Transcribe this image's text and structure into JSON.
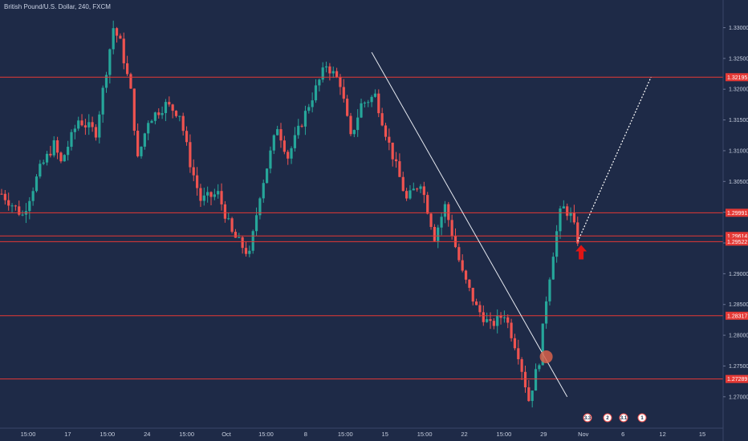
{
  "symbol_title": "British Pound/U.S. Dollar, 240, FXCM",
  "colors": {
    "background": "#1e2a47",
    "up": "#26a69a",
    "down": "#ef5350",
    "level_line": "#e53935",
    "trendline": "#e6e9f0",
    "projection": "#ffffff",
    "arrow": "#e01515",
    "highlight_circle": "#d8624b",
    "axis_text": "#c7cfdf"
  },
  "chart_data": {
    "type": "candlestick",
    "y_range": [
      1.2675,
      1.3345
    ],
    "y_ticks": [
      "1.33000",
      "1.32500",
      "1.32000",
      "1.31500",
      "1.31000",
      "1.30500",
      "1.30000",
      "1.29500",
      "1.29000",
      "1.28500",
      "1.28000",
      "1.27500",
      "1.27000"
    ],
    "x_ticks": [
      "15:00",
      "17",
      "15:00",
      "24",
      "15:00",
      "Oct",
      "15:00",
      "8",
      "15:00",
      "15",
      "15:00",
      "22",
      "15:00",
      "29",
      "Nov",
      "6",
      "12",
      "15"
    ],
    "horizontal_levels": [
      {
        "label": "1.32195",
        "value": 1.32195
      },
      {
        "label": "1.29991",
        "value": 1.29991
      },
      {
        "label": "1.29614",
        "value": 1.29614
      },
      {
        "label": "1.29522",
        "value": 1.29522
      },
      {
        "label": "1.28317",
        "value": 1.28317
      },
      {
        "label": "1.27289",
        "value": 1.27289
      }
    ],
    "path_anchors": [
      [
        0,
        1.303
      ],
      [
        0.03,
        1.2995
      ],
      [
        0.055,
        1.307
      ],
      [
        0.075,
        1.311
      ],
      [
        0.085,
        1.308
      ],
      [
        0.11,
        1.315
      ],
      [
        0.135,
        1.313
      ],
      [
        0.16,
        1.33
      ],
      [
        0.17,
        1.3275
      ],
      [
        0.185,
        1.3195
      ],
      [
        0.195,
        1.3085
      ],
      [
        0.21,
        1.315
      ],
      [
        0.235,
        1.3175
      ],
      [
        0.255,
        1.316
      ],
      [
        0.27,
        1.308
      ],
      [
        0.285,
        1.302
      ],
      [
        0.31,
        1.303
      ],
      [
        0.33,
        1.2965
      ],
      [
        0.355,
        1.293
      ],
      [
        0.37,
        1.303
      ],
      [
        0.395,
        1.314
      ],
      [
        0.41,
        1.309
      ],
      [
        0.44,
        1.3175
      ],
      [
        0.465,
        1.324
      ],
      [
        0.485,
        1.321
      ],
      [
        0.5,
        1.312
      ],
      [
        0.515,
        1.3175
      ],
      [
        0.535,
        1.319
      ],
      [
        0.555,
        1.311
      ],
      [
        0.58,
        1.302
      ],
      [
        0.6,
        1.305
      ],
      [
        0.62,
        1.296
      ],
      [
        0.635,
        1.301
      ],
      [
        0.66,
        1.29
      ],
      [
        0.68,
        1.2845
      ],
      [
        0.7,
        1.2815
      ],
      [
        0.72,
        1.2835
      ],
      [
        0.74,
        1.277
      ],
      [
        0.755,
        1.2695
      ],
      [
        0.77,
        1.276
      ],
      [
        0.78,
        1.286
      ],
      [
        0.792,
        1.295
      ],
      [
        0.802,
        1.301
      ],
      [
        0.815,
        1.2995
      ],
      [
        0.825,
        1.2955
      ]
    ],
    "candle_count": 200,
    "trendline": {
      "start": {
        "index": 106,
        "price": 1.326
      },
      "end": {
        "index": 162,
        "price": 1.27
      }
    },
    "projection": {
      "start": {
        "index": 165,
        "price": 1.29522
      },
      "end": {
        "index": 186,
        "price": 1.32195
      }
    },
    "highlight_circle": {
      "index": 156,
      "price": 1.2765
    },
    "arrow": {
      "index": 166,
      "price": 1.2935
    },
    "event_badges": [
      "3.3",
      "2",
      "3.1",
      "1"
    ]
  }
}
